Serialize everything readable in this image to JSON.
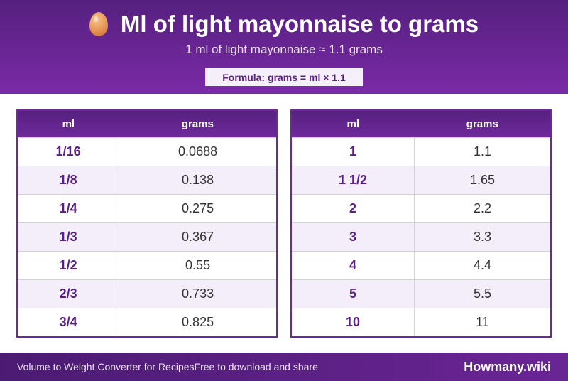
{
  "header": {
    "title": "Ml of light mayonnaise to grams",
    "icon": "egg-icon",
    "subtitle": "1 ml of light mayonnaise ≈ 1.1 grams",
    "formula": "Formula: grams = ml × 1.1"
  },
  "tables": {
    "columns": {
      "ml": "ml",
      "grams": "grams"
    },
    "left": [
      {
        "ml": "1/16",
        "grams": "0.0688"
      },
      {
        "ml": "1/8",
        "grams": "0.138"
      },
      {
        "ml": "1/4",
        "grams": "0.275"
      },
      {
        "ml": "1/3",
        "grams": "0.367"
      },
      {
        "ml": "1/2",
        "grams": "0.55"
      },
      {
        "ml": "2/3",
        "grams": "0.733"
      },
      {
        "ml": "3/4",
        "grams": "0.825"
      }
    ],
    "right": [
      {
        "ml": "1",
        "grams": "1.1"
      },
      {
        "ml": "1 1/2",
        "grams": "1.65"
      },
      {
        "ml": "2",
        "grams": "2.2"
      },
      {
        "ml": "3",
        "grams": "3.3"
      },
      {
        "ml": "4",
        "grams": "4.4"
      },
      {
        "ml": "5",
        "grams": "5.5"
      },
      {
        "ml": "10",
        "grams": "11"
      }
    ]
  },
  "footer": {
    "left_text": "Volume to Weight Converter for Recipes",
    "middle_text": "Free to download and share",
    "brand": "Howmany.wiki"
  },
  "colors": {
    "accent": "#5a1f86",
    "header_bg": "#6a2595",
    "stripe": "#f3eefa"
  }
}
